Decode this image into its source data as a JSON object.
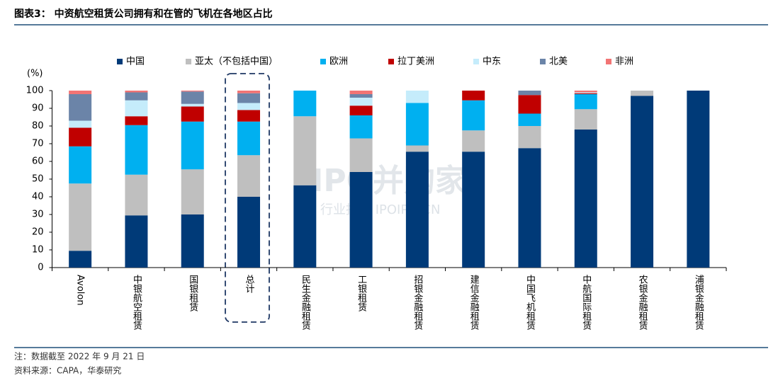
{
  "chart_data": {
    "type": "stacked_bar",
    "title": "图表3： 中资航空租赁公司拥有和在管的飞机在各地区占比",
    "y_unit": "(%)",
    "categories": [
      "Avolon",
      "中银航空租赁",
      "国银租赁",
      "总计",
      "民生金融租赁",
      "工银租赁",
      "招银金融租赁",
      "建信金融租赁",
      "中国飞机租赁",
      "中航国际租赁",
      "农银金融租赁",
      "浦银金融租赁"
    ],
    "series": [
      {
        "name": "中国",
        "color": "#003a78",
        "values": [
          9.5,
          29.5,
          30,
          40,
          46.5,
          54,
          65.5,
          65.5,
          67.5,
          78,
          97,
          100
        ]
      },
      {
        "name": "亚太（不包括中国）",
        "color": "#bfbfbf",
        "values": [
          38,
          23,
          25.5,
          23.5,
          39,
          19,
          3.5,
          12,
          12.5,
          11.5,
          3,
          0
        ]
      },
      {
        "name": "欧洲",
        "color": "#00b0f0",
        "values": [
          21,
          28,
          27,
          19,
          14.5,
          13,
          24,
          17,
          7,
          8.5,
          0,
          0
        ]
      },
      {
        "name": "拉丁美洲",
        "color": "#c00000",
        "values": [
          10.5,
          5,
          8.5,
          6.5,
          0,
          5.5,
          0,
          5.5,
          10.5,
          0.5,
          0,
          0
        ]
      },
      {
        "name": "中东",
        "color": "#c5ecfb",
        "values": [
          4,
          9,
          1.5,
          4,
          0,
          4.5,
          7,
          0,
          0,
          0.5,
          0,
          0
        ]
      },
      {
        "name": "北美",
        "color": "#6b84a8",
        "values": [
          15,
          4.5,
          7,
          5.5,
          0,
          2,
          0,
          0,
          2.5,
          0,
          0,
          0
        ]
      },
      {
        "name": "非洲",
        "color": "#f27474",
        "values": [
          2,
          1,
          0.5,
          1.5,
          0,
          2,
          0,
          0,
          0,
          1,
          0,
          0
        ]
      }
    ],
    "ylim": [
      0,
      100
    ],
    "yticks": [
      0,
      10,
      20,
      30,
      40,
      50,
      60,
      70,
      80,
      90,
      100
    ],
    "grid": false,
    "notes": [
      "注：数据截至 2022 年 9 月 21 日",
      "资料来源：CAPA，华泰研究"
    ],
    "watermark": [
      "IPO并购家",
      "行业报告 IPOIPO.CN"
    ]
  }
}
